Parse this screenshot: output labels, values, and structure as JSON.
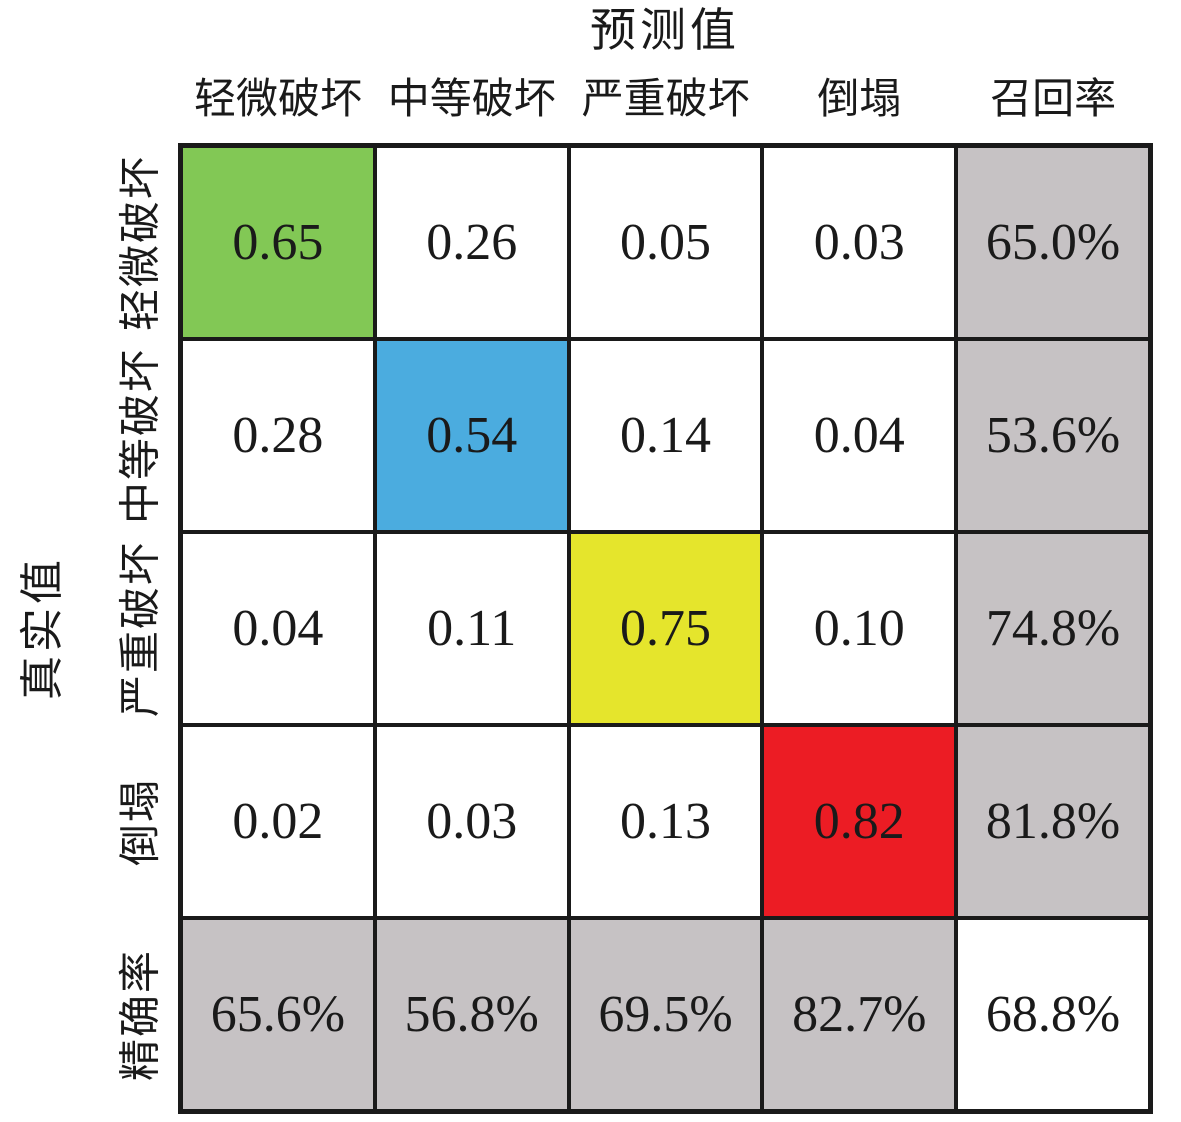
{
  "title": "预测值",
  "y_axis_label": "真实值",
  "chart_data": {
    "type": "heatmap",
    "title": "预测值",
    "xlabel": "预测值",
    "ylabel": "真实值",
    "col_headers": [
      "轻微破坏",
      "中等破坏",
      "严重破坏",
      "倒塌",
      "召回率"
    ],
    "row_headers": [
      "轻微破坏",
      "中等破坏",
      "严重破坏",
      "倒塌",
      "精确率"
    ],
    "matrix": [
      [
        "0.65",
        "0.26",
        "0.05",
        "0.03",
        "65.0%"
      ],
      [
        "0.28",
        "0.54",
        "0.14",
        "0.04",
        "53.6%"
      ],
      [
        "0.04",
        "0.11",
        "0.75",
        "0.10",
        "74.8%"
      ],
      [
        "0.02",
        "0.03",
        "0.13",
        "0.82",
        "81.8%"
      ],
      [
        "65.6%",
        "56.8%",
        "69.5%",
        "82.7%",
        "68.8%"
      ]
    ],
    "recall_column": [
      "65.0%",
      "53.6%",
      "74.8%",
      "81.8%"
    ],
    "precision_row": [
      "65.6%",
      "56.8%",
      "69.5%",
      "82.7%"
    ],
    "overall_accuracy": "68.8%",
    "colors": {
      "diagonal": [
        "#82C855",
        "#4BACDF",
        "#E5E52C",
        "#EC1C24"
      ],
      "summary_bg": "#C6C2C4",
      "cell_bg": "#FFFFFF",
      "grid_line": "#1A1A1A",
      "text": "#1A1A1A"
    },
    "layout": {
      "legend": "none",
      "grid": "on"
    }
  }
}
